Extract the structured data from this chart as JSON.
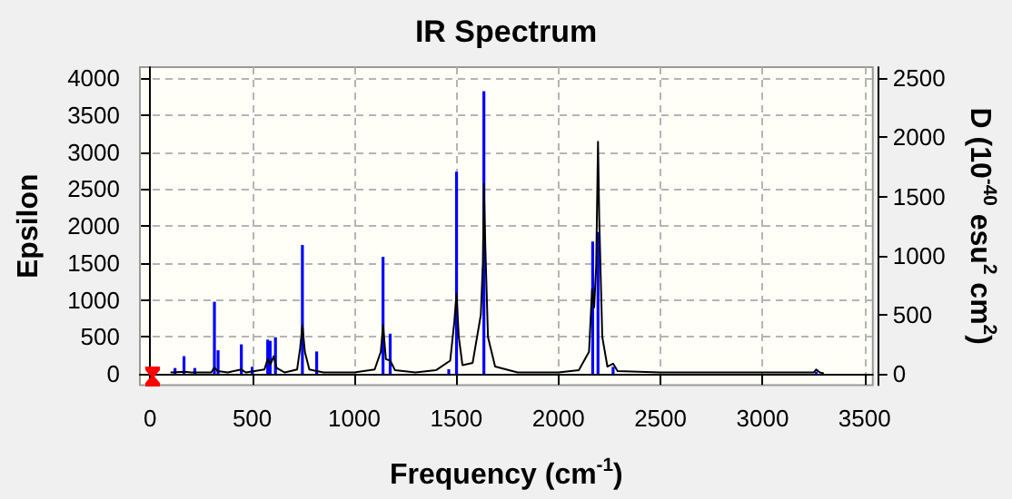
{
  "chart_data": {
    "type": "line",
    "title": "IR Spectrum",
    "xlabel": "Frequency (cm$^{-1}$)",
    "ylabel": "Epsilon",
    "y2label": "D (10$^{-40}$ esu$^{2}$ cm$^{2}$)",
    "xlim": [
      -50,
      3540
    ],
    "xticks": [
      0,
      500,
      1000,
      1500,
      2000,
      2500,
      3000,
      3500
    ],
    "ylim": [
      -150,
      4150
    ],
    "yticks": [
      0,
      500,
      1000,
      1500,
      2000,
      2500,
      3000,
      3500,
      4000
    ],
    "y2lim": [
      -94,
      2594
    ],
    "y2ticks": [
      0,
      500,
      1000,
      1500,
      2000,
      2500
    ],
    "grid": true,
    "marker": "none",
    "series": [
      {
        "color": "#000000",
        "x": [
          100,
          170,
          200,
          300,
          315,
          330,
          380,
          447,
          470,
          560,
          576,
          590,
          605,
          620,
          660,
          720,
          735,
          746,
          758,
          780,
          816,
          850,
          1000,
          1100,
          1130,
          1141,
          1155,
          1176,
          1200,
          1300,
          1400,
          1470,
          1490,
          1501,
          1512,
          1530,
          1580,
          1620,
          1630,
          1635,
          1642,
          1655,
          1690,
          1800,
          2000,
          2100,
          2150,
          2165,
          2175,
          2185,
          2194,
          2200,
          2215,
          2240,
          2268,
          2290,
          2500,
          3000,
          3250,
          3263,
          3280,
          3300
        ],
        "values": [
          20,
          30,
          20,
          20,
          90,
          40,
          20,
          60,
          20,
          60,
          200,
          130,
          240,
          80,
          20,
          60,
          350,
          660,
          300,
          60,
          40,
          20,
          20,
          60,
          300,
          660,
          200,
          180,
          50,
          20,
          50,
          180,
          700,
          1090,
          500,
          120,
          150,
          800,
          1500,
          2570,
          1720,
          500,
          100,
          20,
          20,
          50,
          300,
          1150,
          900,
          1450,
          3140,
          2100,
          500,
          100,
          140,
          40,
          20,
          20,
          20,
          60,
          20,
          10
        ]
      },
      {
        "type": "bar",
        "axis": "y2",
        "color": "#0000ff",
        "x": [
          122,
          166,
          219,
          315,
          333,
          447,
          500,
          576,
          588,
          614,
          746,
          816,
          1141,
          1176,
          1463,
          1501,
          1635,
          2168,
          2194,
          2268,
          3263
        ],
        "values": [
          50,
          150,
          50,
          610,
          200,
          250,
          60,
          290,
          280,
          310,
          1090,
          190,
          990,
          340,
          40,
          1710,
          2390,
          1120,
          1200,
          60,
          20
        ]
      }
    ]
  }
}
